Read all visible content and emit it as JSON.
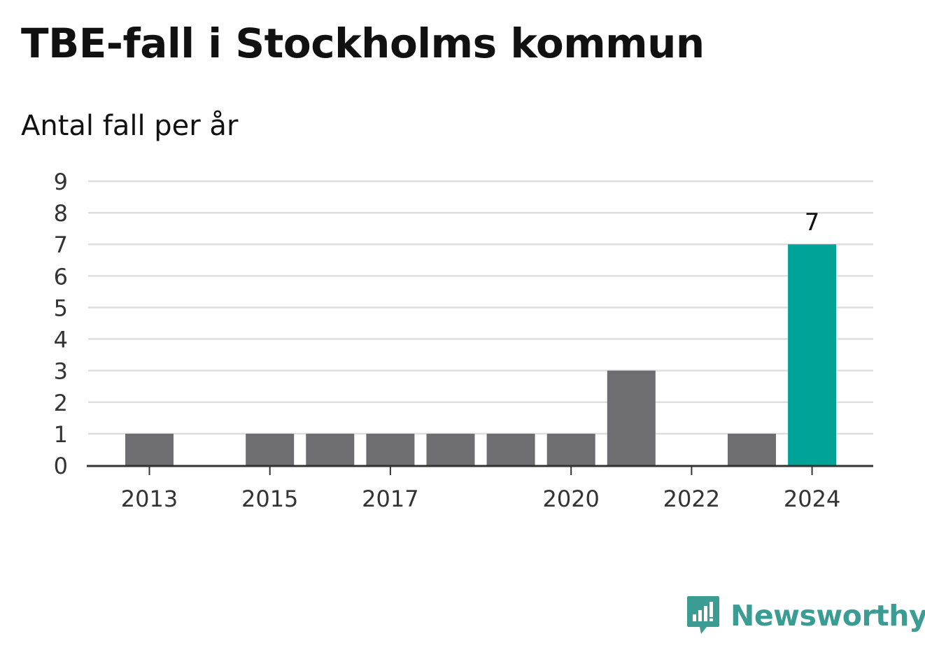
{
  "title": "TBE-fall i Stockholms kommun",
  "subtitle": "Antal fall per år",
  "colors": {
    "bar_default": "#6e6d72",
    "bar_highlight": "#00a398",
    "gridline": "#dedede",
    "axis": "#333333",
    "logo": "#3a9c92"
  },
  "chart_data": {
    "type": "bar",
    "categories": [
      "2013",
      "2014",
      "2015",
      "2016",
      "2017",
      "2018",
      "2019",
      "2020",
      "2021",
      "2022",
      "2023",
      "2024"
    ],
    "values": [
      1,
      0,
      1,
      1,
      1,
      1,
      1,
      1,
      3,
      0,
      1,
      7
    ],
    "highlight": "2024",
    "data_labels": {
      "2024": "7"
    },
    "x_tick_labels": [
      "2013",
      "2015",
      "2017",
      "2020",
      "2022",
      "2024"
    ],
    "y_ticks": [
      0,
      1,
      2,
      3,
      4,
      5,
      6,
      7,
      8,
      9
    ],
    "ylim": [
      0,
      9
    ],
    "grid": true,
    "title": "TBE-fall i Stockholms kommun",
    "subtitle": "Antal fall per år",
    "xlabel": "",
    "ylabel": ""
  },
  "logo": {
    "text": "Newsworthy",
    "icon": "bar-chart-speech-bubble-icon"
  }
}
